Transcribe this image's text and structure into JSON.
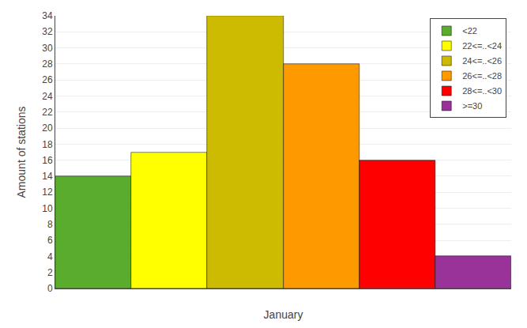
{
  "chart_data": {
    "type": "bar",
    "categories": [
      null,
      null,
      null,
      null,
      null,
      null
    ],
    "series": [
      {
        "name": "<22",
        "color": "#5aad2c",
        "values": [
          14,
          null,
          null,
          null,
          null,
          null
        ]
      },
      {
        "name": "22<=..<24",
        "color": "#ffff00",
        "values": [
          null,
          17,
          null,
          null,
          null,
          null
        ]
      },
      {
        "name": "24<=..<26",
        "color": "#ccbb00",
        "values": [
          null,
          null,
          34,
          null,
          null,
          null
        ]
      },
      {
        "name": "26<=..<28",
        "color": "#ff9900",
        "values": [
          null,
          null,
          null,
          28,
          null,
          null
        ]
      },
      {
        "name": "28<=..<30",
        "color": "#ff0000",
        "values": [
          null,
          null,
          null,
          null,
          16,
          null
        ]
      },
      {
        "name": ">=30",
        "color": "#993399",
        "values": [
          null,
          null,
          null,
          null,
          null,
          4
        ]
      }
    ],
    "xlabel": "January",
    "ylabel": "Amount of stations",
    "ylim": [
      0,
      34
    ],
    "yticks": [
      0,
      2,
      4,
      6,
      8,
      10,
      12,
      14,
      16,
      18,
      20,
      22,
      24,
      26,
      28,
      30,
      32,
      34
    ],
    "grid": true,
    "legend": "upper right",
    "tick_labels": "y"
  }
}
